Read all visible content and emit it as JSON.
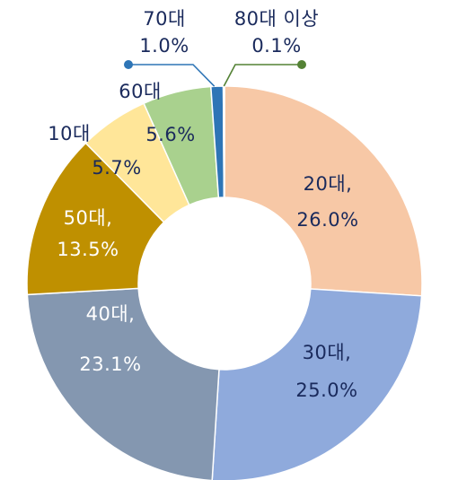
{
  "chart_data": {
    "type": "pie",
    "variant": "donut",
    "categories": [
      "20대",
      "30대",
      "40대",
      "50대",
      "10대",
      "60대",
      "70대",
      "80대 이상"
    ],
    "values": [
      26.0,
      25.0,
      23.1,
      13.5,
      5.7,
      5.6,
      1.0,
      0.1
    ],
    "unit": "%",
    "start_angle_deg": 0,
    "direction": "clockwise",
    "colors": [
      "#f7c8a6",
      "#8faadc",
      "#8497b0",
      "#bf9000",
      "#ffe699",
      "#a9d18e",
      "#2e75b6",
      "#548235"
    ],
    "data_labels": [
      {
        "name": "20대,",
        "value": "26.0%",
        "placement": "inside",
        "theme": "dark"
      },
      {
        "name": "30대,",
        "value": "25.0%",
        "placement": "inside",
        "theme": "dark"
      },
      {
        "name": "40대,",
        "value": "23.1%",
        "placement": "inside",
        "theme": "light"
      },
      {
        "name": "50대,",
        "value": "13.5%",
        "placement": "inside",
        "theme": "light"
      },
      {
        "name": "10대",
        "value": "5.7%",
        "placement": "split",
        "theme": "dark"
      },
      {
        "name": "60대",
        "value": "5.6%",
        "placement": "split",
        "theme": "dark"
      },
      {
        "name": "70대",
        "value": "1.0%",
        "placement": "outside-callout",
        "theme": "dark"
      },
      {
        "name": "80대 이상",
        "value": "0.1%",
        "placement": "outside-callout",
        "theme": "dark"
      }
    ],
    "legend": "none",
    "title": ""
  }
}
